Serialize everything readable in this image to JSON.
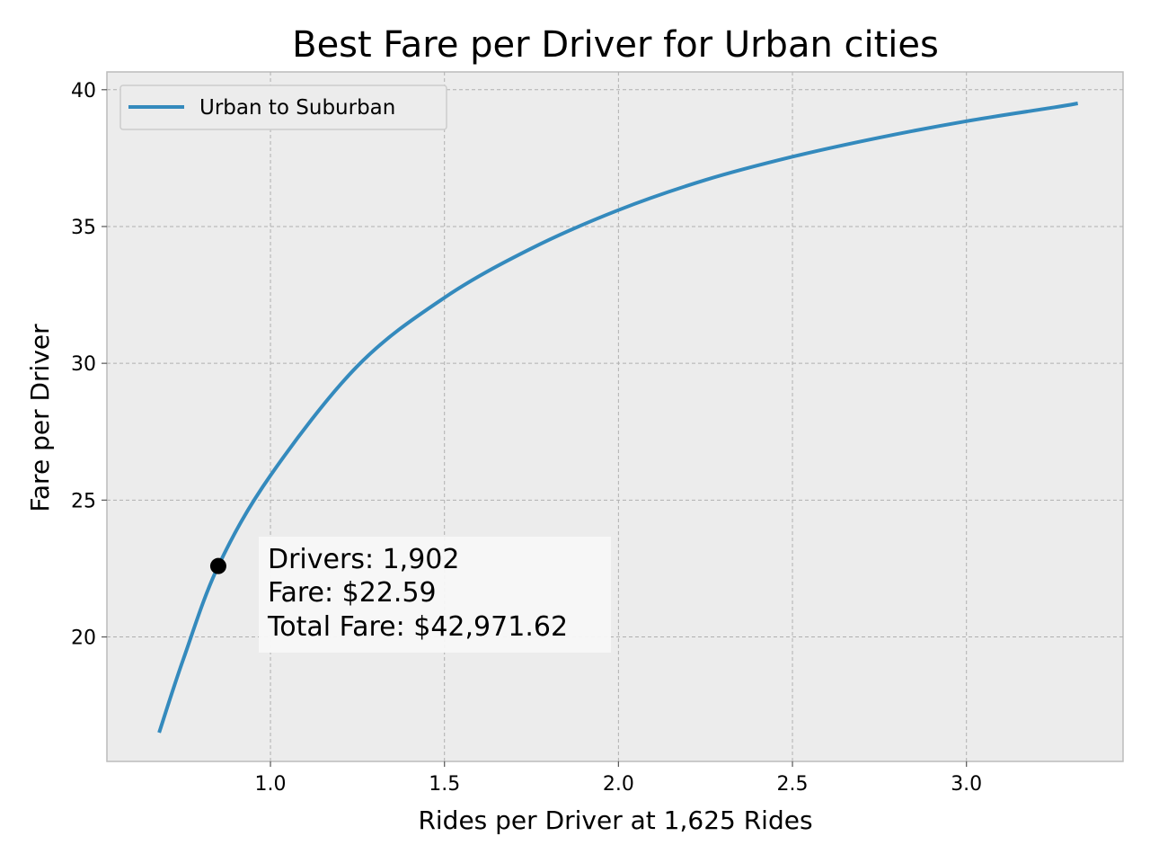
{
  "chart_data": {
    "type": "line",
    "title": "Best Fare per Driver for Urban cities",
    "xlabel": "Rides per Driver at 1,625 Rides",
    "ylabel": "Fare per Driver",
    "xlim": [
      0.53,
      3.45
    ],
    "ylim": [
      15.45,
      40.65
    ],
    "x_ticks": [
      1.0,
      1.5,
      2.0,
      2.5,
      3.0
    ],
    "x_tick_labels": [
      "1.0",
      "1.5",
      "2.0",
      "2.5",
      "3.0"
    ],
    "y_ticks": [
      20,
      25,
      30,
      35,
      40
    ],
    "y_tick_labels": [
      "20",
      "25",
      "30",
      "35",
      "40"
    ],
    "grid": true,
    "legend_position": "upper-left",
    "series": [
      {
        "name": "Urban to Suburban",
        "color": "#348abd",
        "x": [
          0.68,
          0.75,
          0.85,
          1.0,
          1.25,
          1.5,
          1.75,
          2.0,
          2.25,
          2.5,
          2.75,
          3.0,
          3.25,
          3.32
        ],
        "y": [
          16.5,
          19.2,
          22.59,
          25.9,
          29.9,
          32.4,
          34.2,
          35.6,
          36.7,
          37.55,
          38.25,
          38.85,
          39.35,
          39.5
        ]
      }
    ],
    "marker": {
      "x": 0.85,
      "y": 22.59,
      "color": "#000000"
    },
    "annotation": {
      "lines": [
        "Drivers: 1,902",
        "Fare: $22.59",
        "Total Fare: $42,971.62"
      ]
    }
  },
  "colors": {
    "plot_background": "#ececec",
    "grid": "#b0b0b0",
    "spine": "#bcbcbc",
    "line": "#348abd"
  }
}
